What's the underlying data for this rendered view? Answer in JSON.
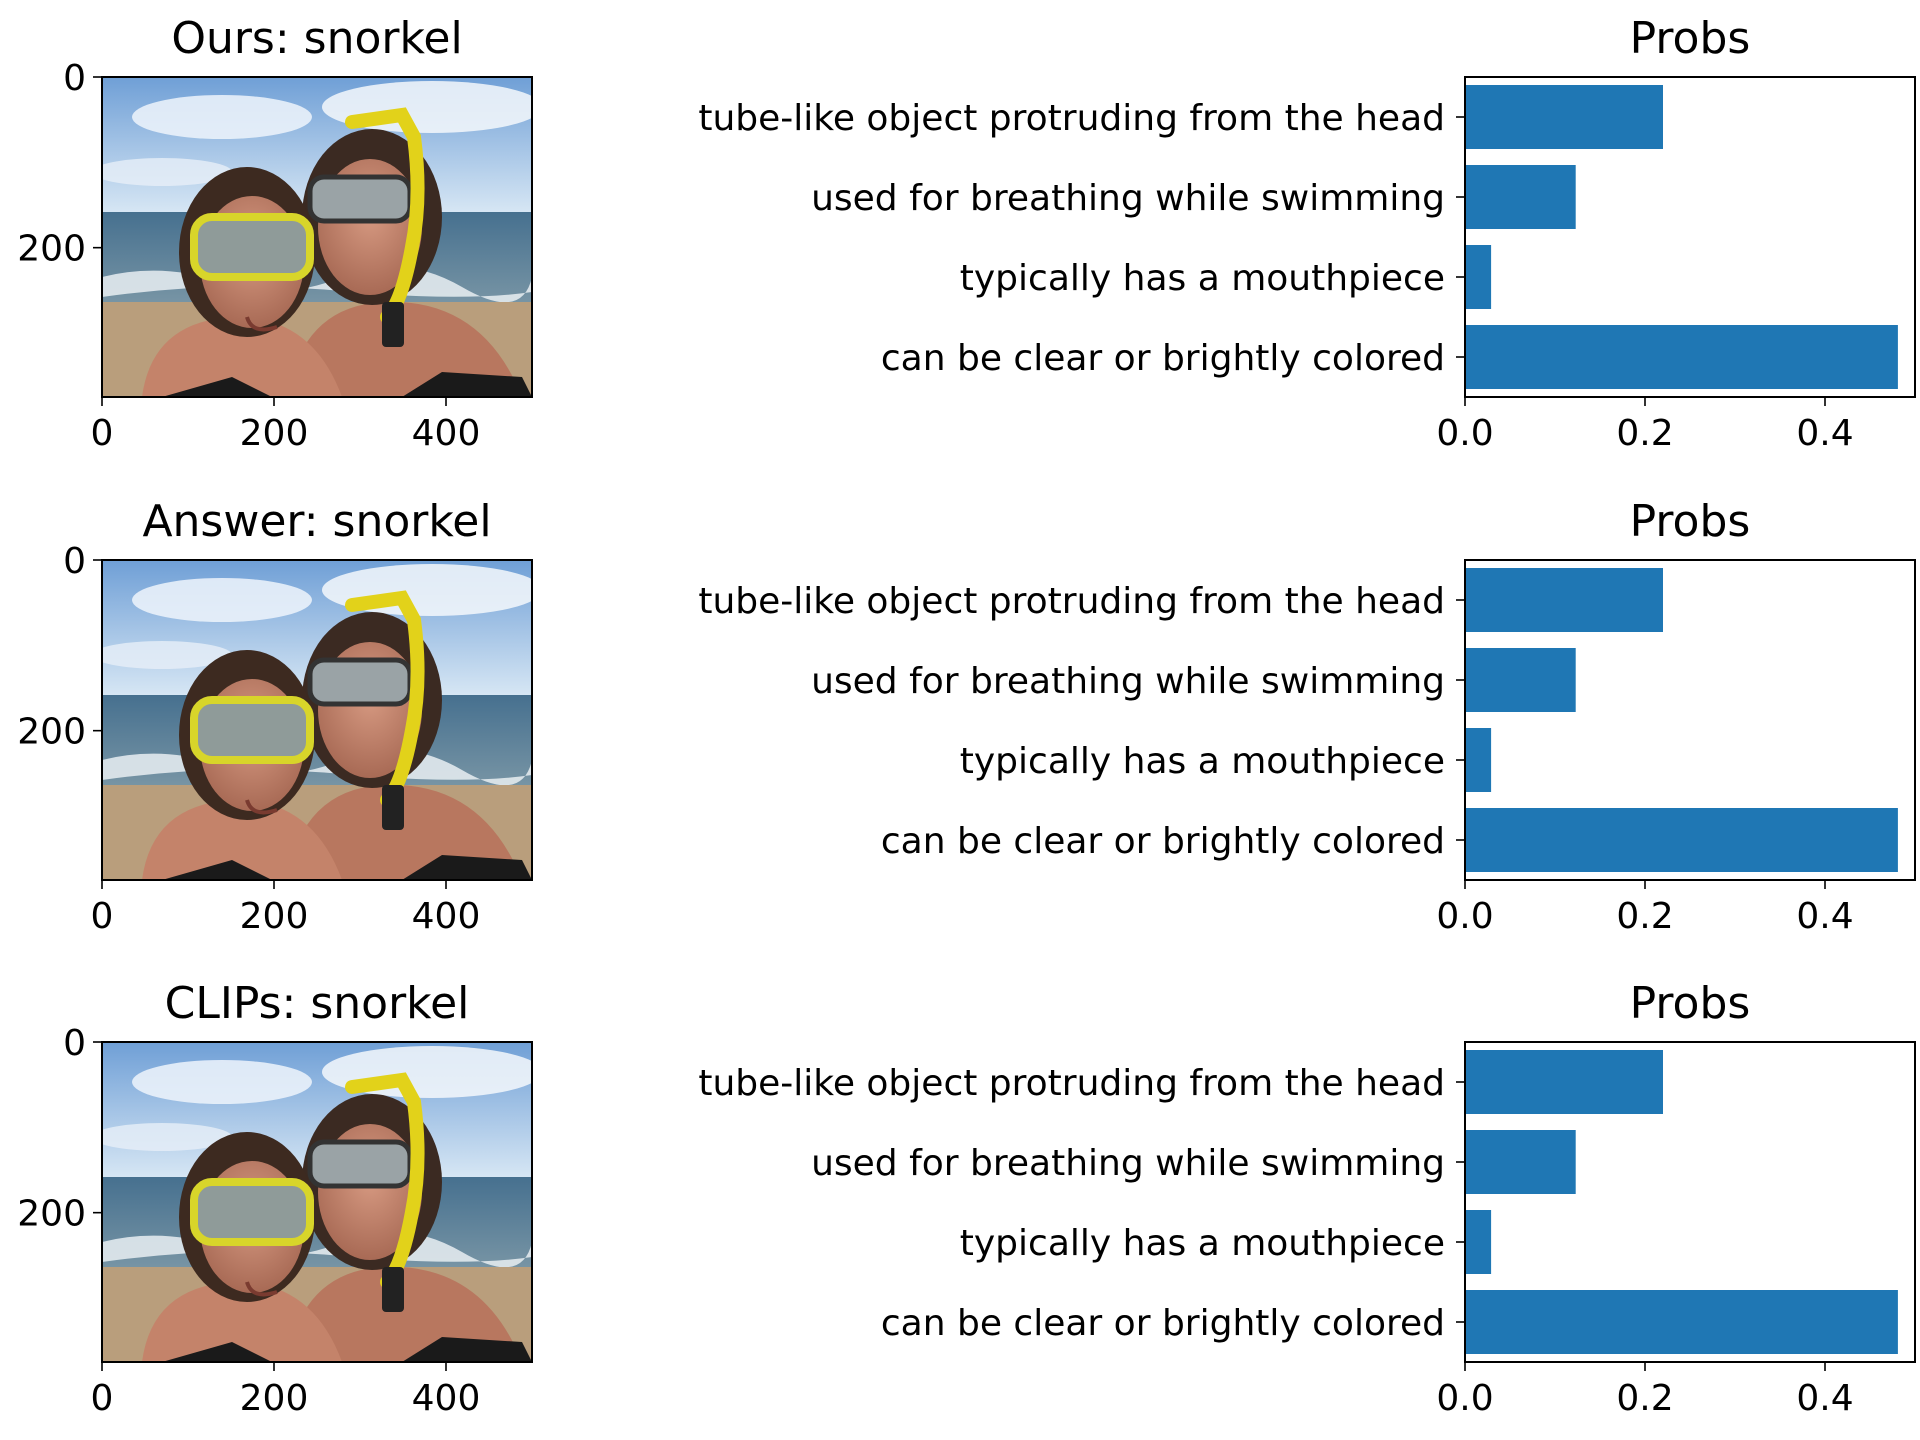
{
  "figure": {
    "rows": [
      {
        "image_title": "Ours: snorkel",
        "image_axes": {
          "yticks": [
            0,
            200
          ],
          "xticks": [
            0,
            200,
            400
          ]
        },
        "chart_data": {
          "type": "bar",
          "title": "Probs",
          "orientation": "horizontal",
          "categories": [
            "tube-like object protruding from the head",
            "used for breathing while swimming",
            "typically has a mouthpiece",
            "can be clear or brightly colored"
          ],
          "values": [
            0.22,
            0.123,
            0.029,
            0.481
          ],
          "xlim": [
            0,
            0.5
          ],
          "xticks": [
            0.0,
            0.2,
            0.4
          ],
          "xtick_labels": [
            "0.0",
            "0.2",
            "0.4"
          ],
          "grid": false,
          "color": "#1f77b4"
        }
      },
      {
        "image_title": "Answer: snorkel",
        "image_axes": {
          "yticks": [
            0,
            200
          ],
          "xticks": [
            0,
            200,
            400
          ]
        },
        "chart_data": {
          "type": "bar",
          "title": "Probs",
          "orientation": "horizontal",
          "categories": [
            "tube-like object protruding from the head",
            "used for breathing while swimming",
            "typically has a mouthpiece",
            "can be clear or brightly colored"
          ],
          "values": [
            0.22,
            0.123,
            0.029,
            0.481
          ],
          "xlim": [
            0,
            0.5
          ],
          "xticks": [
            0.0,
            0.2,
            0.4
          ],
          "xtick_labels": [
            "0.0",
            "0.2",
            "0.4"
          ],
          "grid": false,
          "color": "#1f77b4"
        }
      },
      {
        "image_title": "CLIPs: snorkel",
        "image_axes": {
          "yticks": [
            0,
            200
          ],
          "xticks": [
            0,
            200,
            400
          ]
        },
        "chart_data": {
          "type": "bar",
          "title": "Probs",
          "orientation": "horizontal",
          "categories": [
            "tube-like object protruding from the head",
            "used for breathing while swimming",
            "typically has a mouthpiece",
            "can be clear or brightly colored"
          ],
          "values": [
            0.22,
            0.123,
            0.029,
            0.481
          ],
          "xlim": [
            0,
            0.5
          ],
          "xticks": [
            0.0,
            0.2,
            0.4
          ],
          "xtick_labels": [
            "0.0",
            "0.2",
            "0.4"
          ],
          "grid": false,
          "color": "#1f77b4"
        }
      }
    ]
  }
}
